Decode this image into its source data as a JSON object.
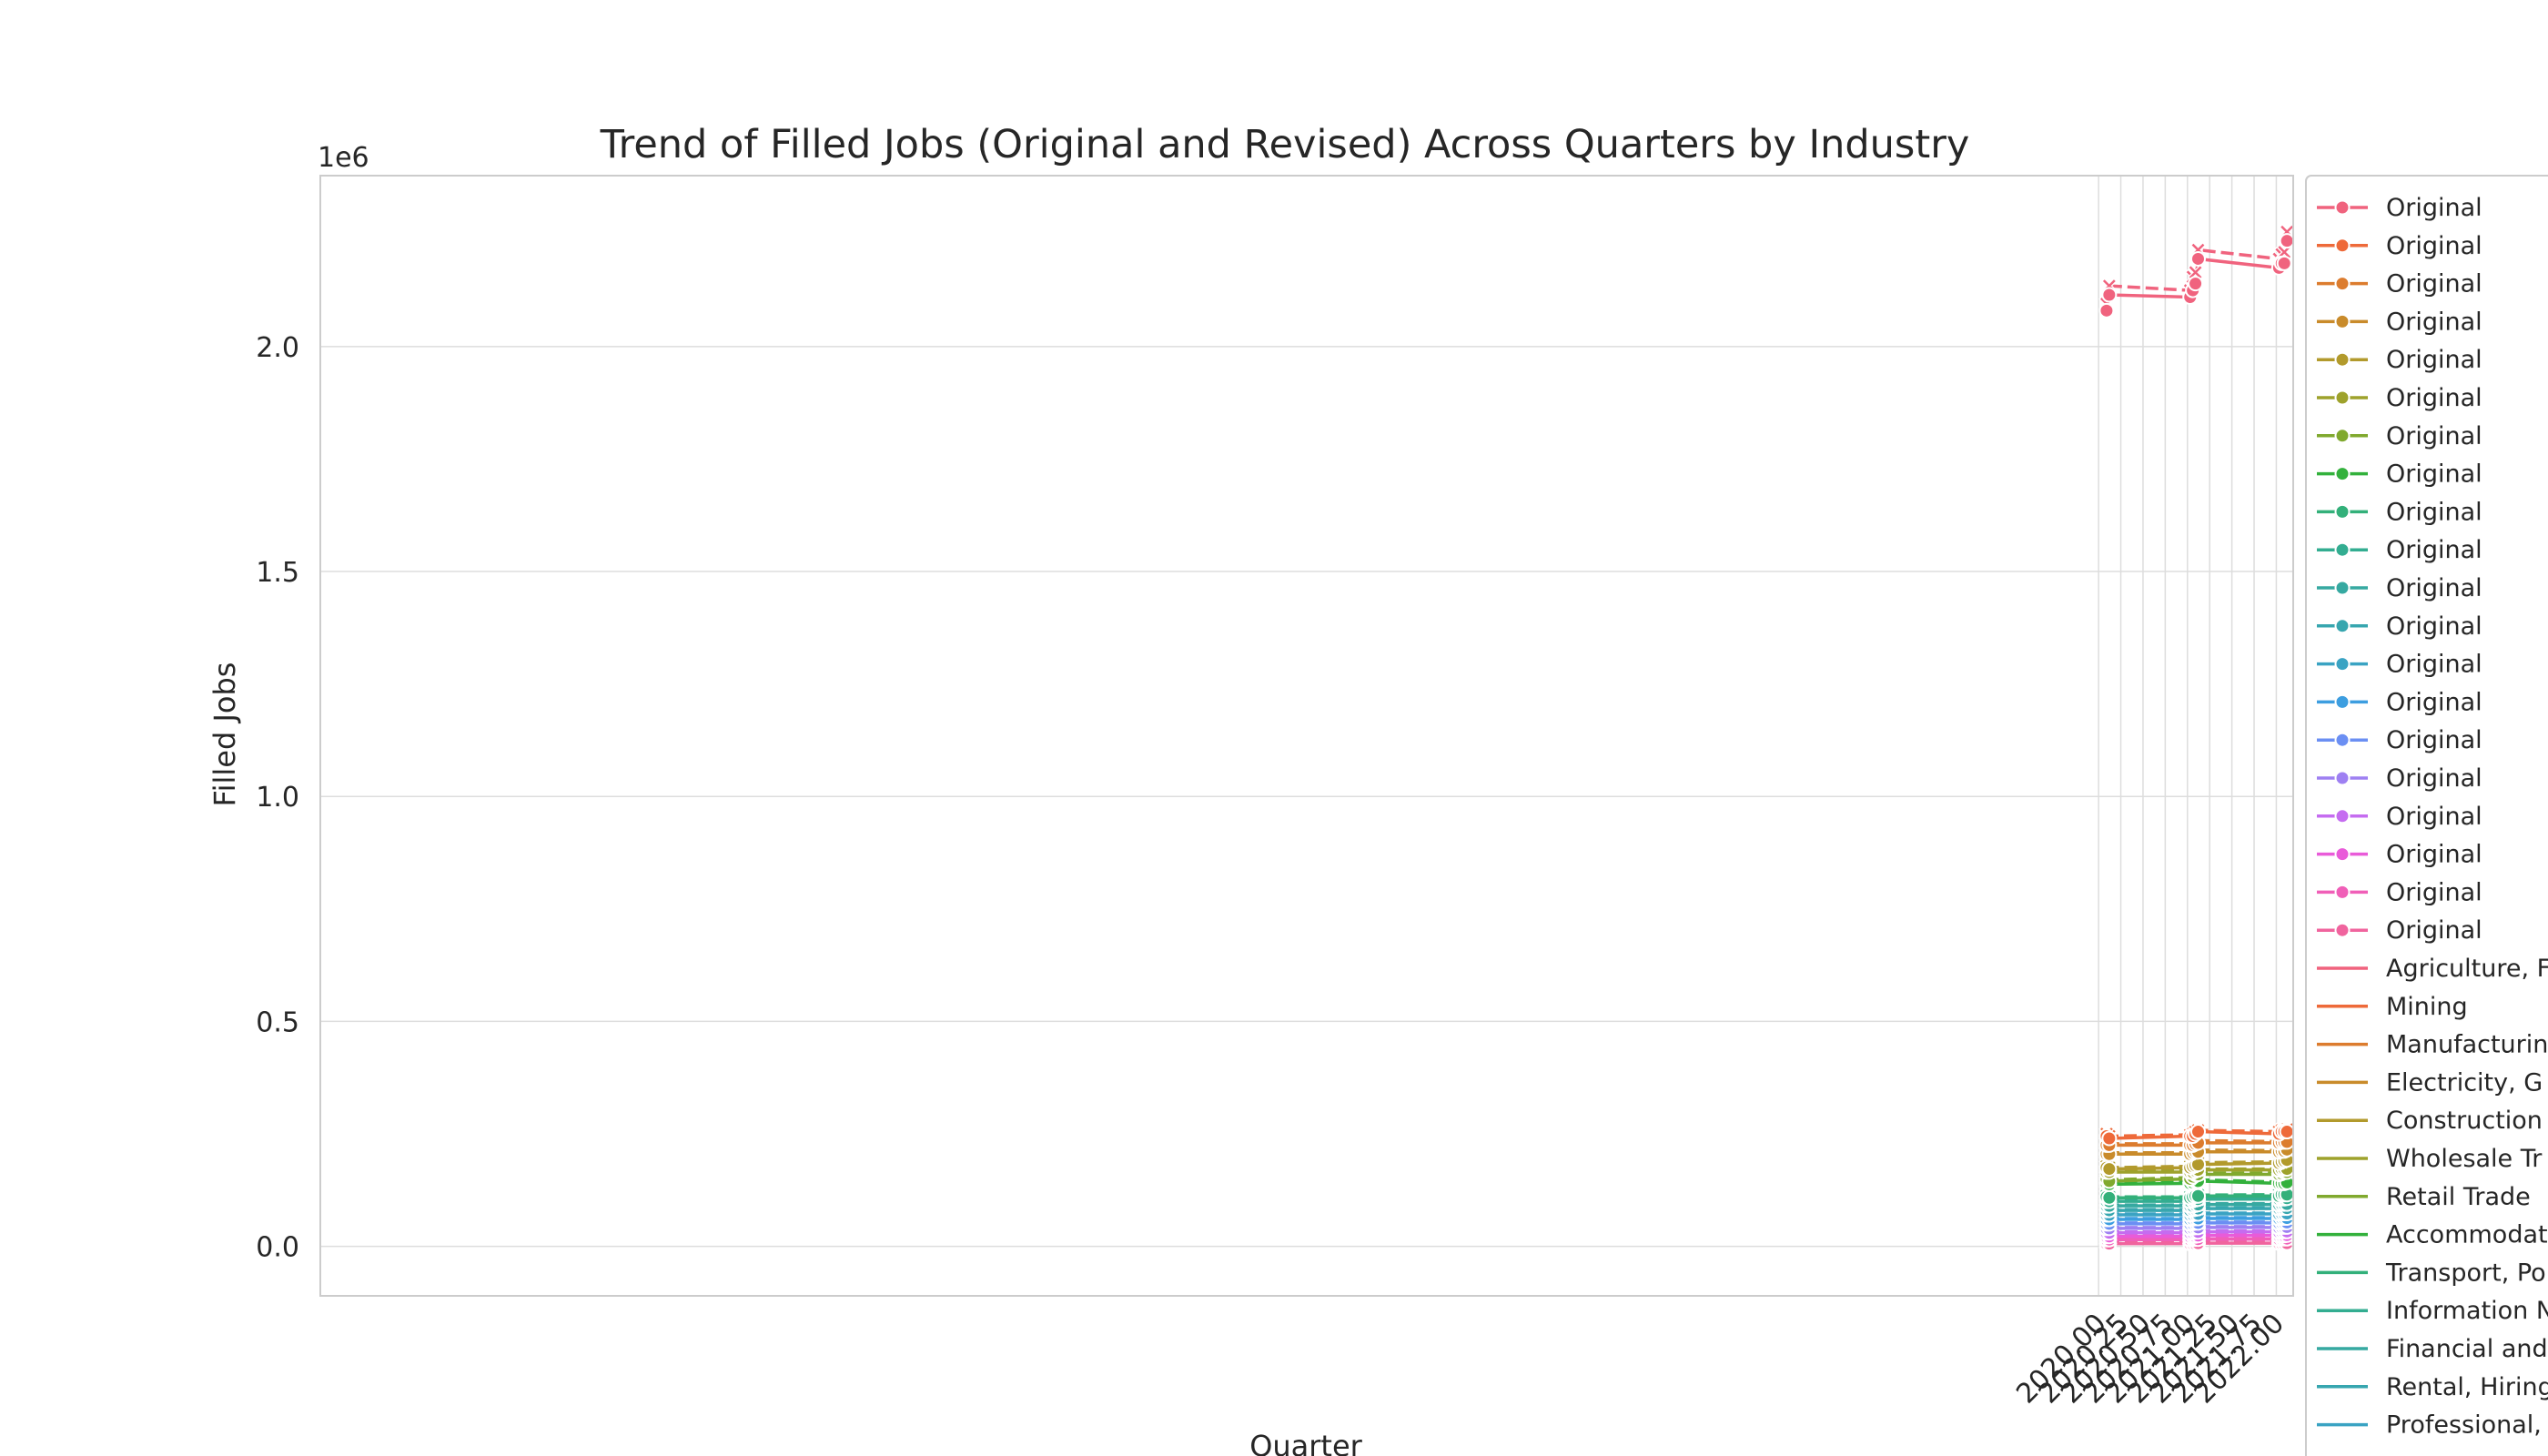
{
  "chart_data": {
    "type": "line",
    "title": "Trend of Filled Jobs (Original and Revised) Across Quarters by Industry",
    "xlabel": "Quarter",
    "ylabel": "Filled Jobs",
    "y_offset_label": "1e6",
    "xlim": [
      1999.99,
      2022.19
    ],
    "ylim": [
      -0.11,
      2.38
    ],
    "y_unit_scale": 1000000,
    "x_ticks": [
      2020.0,
      2020.25,
      2020.5,
      2020.75,
      2021.0,
      2021.25,
      2021.5,
      2021.75,
      2022.0
    ],
    "x_tick_labels": [
      "2020.00",
      "2020.25",
      "2020.50",
      "2020.75",
      "2021.00",
      "2021.25",
      "2021.50",
      "2021.75",
      "2022.00"
    ],
    "y_ticks": [
      0.0,
      0.5,
      1.0,
      1.5,
      2.0
    ],
    "y_tick_labels": [
      "0.0",
      "0.5",
      "1.0",
      "1.5",
      "2.0"
    ],
    "x": [
      2020.09,
      2020.12,
      2021.03,
      2021.06,
      2021.09,
      2021.12,
      2022.03,
      2022.06,
      2022.09,
      2022.12
    ],
    "grid": true,
    "legend_position": "right",
    "legend": {
      "original_entries": [
        "Original",
        "Original",
        "Original",
        "Original",
        "Original",
        "Original",
        "Original",
        "Original",
        "Original",
        "Original",
        "Original",
        "Original",
        "Original",
        "Original",
        "Original",
        "Original",
        "Original",
        "Original",
        "Original",
        "Original"
      ],
      "industry_entries": [
        "Agriculture, F",
        "Mining",
        "Manufacturin",
        "Electricity, G",
        "Construction",
        "Wholesale Tr",
        "Retail Trade",
        "Accommodat",
        "Transport, Po",
        "Information N",
        "Financial and",
        "Rental, Hiring",
        "Professional,"
      ]
    },
    "series_colors": [
      "#f0637e",
      "#ee6a3a",
      "#dc7c2e",
      "#c98b2b",
      "#b29a2c",
      "#9ea22c",
      "#80a92e",
      "#33b13c",
      "#33b07a",
      "#33ad91",
      "#36a9a1",
      "#37a6af",
      "#3aa3c3",
      "#3d9ee0",
      "#6b8ff3",
      "#9e80f2",
      "#c56cf0",
      "#e95bd9",
      "#f05fb8",
      "#f0649e"
    ],
    "series": [
      {
        "original": [
          2.08,
          2.115,
          2.11,
          2.125,
          2.14,
          2.195,
          2.175,
          2.185,
          2.185,
          2.235
        ],
        "revised": [
          2.095,
          2.135,
          2.125,
          2.155,
          2.165,
          2.215,
          2.195,
          2.205,
          2.21,
          2.255
        ]
      },
      {
        "original": [
          0.245,
          0.24,
          0.245,
          0.245,
          0.25,
          0.255,
          0.25,
          0.255,
          0.255,
          0.255
        ],
        "revised": [
          0.25,
          0.245,
          0.248,
          0.25,
          0.255,
          0.258,
          0.255,
          0.258,
          0.258,
          0.26
        ]
      },
      {
        "original": [
          0.225,
          0.225,
          0.225,
          0.225,
          0.228,
          0.23,
          0.23,
          0.232,
          0.232,
          0.232
        ],
        "revised": [
          0.228,
          0.228,
          0.228,
          0.23,
          0.232,
          0.235,
          0.233,
          0.235,
          0.235,
          0.237
        ]
      },
      {
        "original": [
          0.205,
          0.205,
          0.205,
          0.208,
          0.21,
          0.21,
          0.21,
          0.212,
          0.212,
          0.215
        ],
        "revised": [
          0.208,
          0.208,
          0.208,
          0.21,
          0.213,
          0.214,
          0.213,
          0.215,
          0.215,
          0.218
        ]
      },
      {
        "original": [
          0.175,
          0.172,
          0.175,
          0.178,
          0.18,
          0.182,
          0.185,
          0.188,
          0.19,
          0.192
        ],
        "revised": [
          0.178,
          0.175,
          0.178,
          0.18,
          0.183,
          0.186,
          0.188,
          0.19,
          0.193,
          0.195
        ]
      },
      {
        "original": [
          0.165,
          0.165,
          0.165,
          0.165,
          0.168,
          0.17,
          0.17,
          0.172,
          0.172,
          0.172
        ],
        "revised": [
          0.168,
          0.168,
          0.168,
          0.168,
          0.17,
          0.172,
          0.172,
          0.175,
          0.175,
          0.175
        ]
      },
      {
        "original": [
          0.15,
          0.145,
          0.15,
          0.155,
          0.16,
          0.16,
          0.16,
          0.162,
          0.165,
          0.165
        ],
        "revised": [
          0.153,
          0.148,
          0.153,
          0.158,
          0.163,
          0.163,
          0.163,
          0.165,
          0.168,
          0.168
        ]
      },
      {
        "original": [
          0.14,
          0.138,
          0.14,
          0.142,
          0.145,
          0.145,
          0.14,
          0.14,
          0.14,
          0.142
        ],
        "revised": [
          0.143,
          0.14,
          0.143,
          0.145,
          0.148,
          0.148,
          0.143,
          0.143,
          0.143,
          0.145
        ]
      },
      {
        "original": [
          0.11,
          0.108,
          0.108,
          0.11,
          0.112,
          0.112,
          0.112,
          0.115,
          0.115,
          0.115
        ],
        "revised": [
          0.112,
          0.11,
          0.11,
          0.112,
          0.114,
          0.114,
          0.115,
          0.117,
          0.117,
          0.118
        ]
      },
      {
        "original": [
          0.1,
          0.1,
          0.1,
          0.102,
          0.104,
          0.105,
          0.105,
          0.106,
          0.106,
          0.107
        ],
        "revised": [
          0.102,
          0.102,
          0.102,
          0.104,
          0.106,
          0.107,
          0.107,
          0.108,
          0.108,
          0.109
        ]
      },
      {
        "original": [
          0.09,
          0.09,
          0.09,
          0.09,
          0.092,
          0.093,
          0.093,
          0.094,
          0.094,
          0.094
        ],
        "revised": [
          0.092,
          0.092,
          0.092,
          0.092,
          0.094,
          0.095,
          0.095,
          0.096,
          0.096,
          0.096
        ]
      },
      {
        "original": [
          0.08,
          0.08,
          0.08,
          0.082,
          0.083,
          0.084,
          0.084,
          0.085,
          0.085,
          0.085
        ],
        "revised": [
          0.082,
          0.082,
          0.082,
          0.084,
          0.085,
          0.086,
          0.086,
          0.087,
          0.087,
          0.087
        ]
      },
      {
        "original": [
          0.07,
          0.07,
          0.07,
          0.071,
          0.072,
          0.072,
          0.072,
          0.073,
          0.073,
          0.073
        ],
        "revised": [
          0.072,
          0.072,
          0.072,
          0.073,
          0.074,
          0.074,
          0.074,
          0.075,
          0.075,
          0.075
        ]
      },
      {
        "original": [
          0.06,
          0.06,
          0.06,
          0.061,
          0.062,
          0.062,
          0.062,
          0.063,
          0.063,
          0.063
        ],
        "revised": [
          0.062,
          0.062,
          0.062,
          0.063,
          0.064,
          0.064,
          0.064,
          0.065,
          0.065,
          0.065
        ]
      },
      {
        "original": [
          0.05,
          0.05,
          0.05,
          0.051,
          0.052,
          0.052,
          0.052,
          0.053,
          0.053,
          0.053
        ],
        "revised": [
          0.052,
          0.052,
          0.052,
          0.053,
          0.054,
          0.054,
          0.054,
          0.055,
          0.055,
          0.055
        ]
      },
      {
        "original": [
          0.04,
          0.04,
          0.04,
          0.041,
          0.042,
          0.042,
          0.042,
          0.043,
          0.043,
          0.043
        ],
        "revised": [
          0.042,
          0.042,
          0.042,
          0.043,
          0.044,
          0.044,
          0.044,
          0.045,
          0.045,
          0.045
        ]
      },
      {
        "original": [
          0.03,
          0.03,
          0.03,
          0.031,
          0.032,
          0.032,
          0.032,
          0.033,
          0.033,
          0.033
        ],
        "revised": [
          0.032,
          0.032,
          0.032,
          0.033,
          0.034,
          0.034,
          0.034,
          0.035,
          0.035,
          0.035
        ]
      },
      {
        "original": [
          0.022,
          0.022,
          0.022,
          0.023,
          0.023,
          0.024,
          0.024,
          0.024,
          0.024,
          0.025
        ],
        "revised": [
          0.024,
          0.024,
          0.024,
          0.025,
          0.025,
          0.026,
          0.026,
          0.026,
          0.026,
          0.027
        ]
      },
      {
        "original": [
          0.015,
          0.015,
          0.015,
          0.016,
          0.016,
          0.016,
          0.016,
          0.017,
          0.017,
          0.017
        ],
        "revised": [
          0.017,
          0.017,
          0.017,
          0.018,
          0.018,
          0.018,
          0.018,
          0.019,
          0.019,
          0.019
        ]
      },
      {
        "original": [
          0.006,
          0.006,
          0.006,
          0.006,
          0.006,
          0.007,
          0.007,
          0.007,
          0.007,
          0.007
        ],
        "revised": [
          0.008,
          0.008,
          0.008,
          0.008,
          0.008,
          0.009,
          0.009,
          0.009,
          0.009,
          0.009
        ]
      }
    ]
  }
}
